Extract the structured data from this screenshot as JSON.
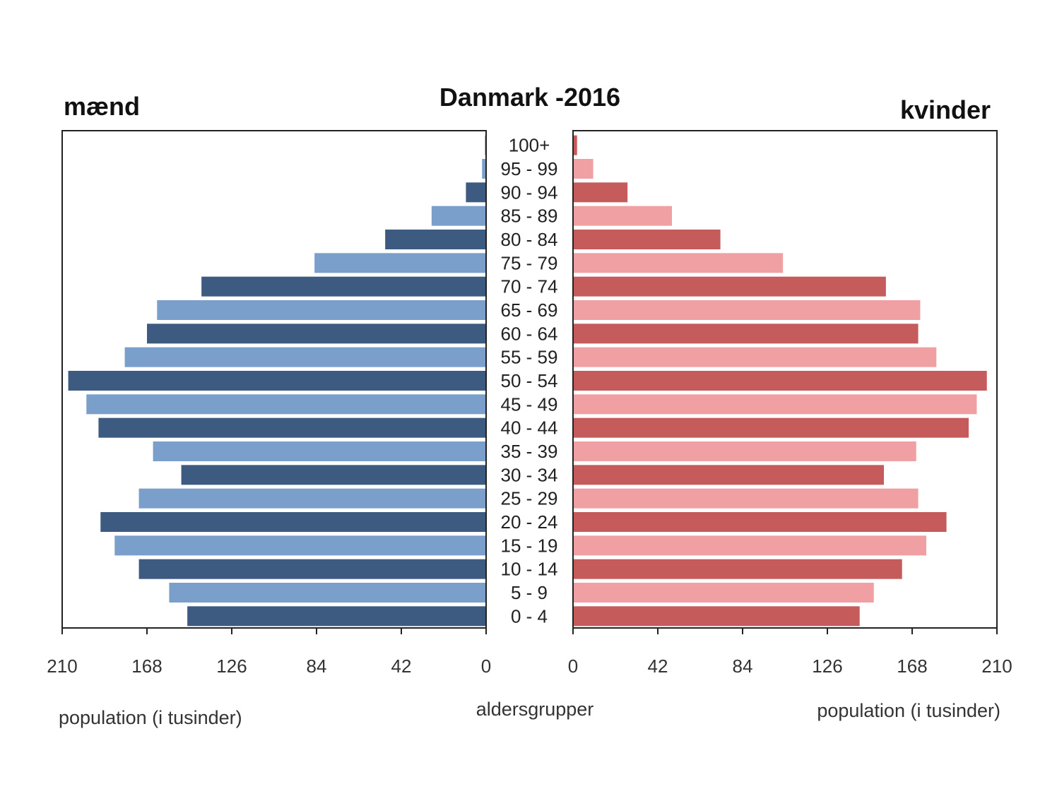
{
  "chart_data": {
    "type": "bar",
    "orientation": "horizontal",
    "layout": "population-pyramid",
    "title": "Danmark -2016",
    "left_panel_label": "mænd",
    "right_panel_label": "kvinder",
    "xlabel_left": "population (i tusinder)",
    "xlabel_right": "population (i tusinder)",
    "center_label": "aldersgrupper",
    "xlim": [
      0,
      210
    ],
    "xticks": [
      0,
      42,
      84,
      126,
      168,
      210
    ],
    "categories": [
      "0 - 4",
      "5 - 9",
      "10 - 14",
      "15 - 19",
      "20 - 24",
      "25 - 29",
      "30 - 34",
      "35 - 39",
      "40 - 44",
      "45 - 49",
      "50 - 54",
      "55 - 59",
      "60 - 64",
      "65 - 69",
      "70 - 74",
      "75 - 79",
      "80 - 84",
      "85 - 89",
      "90 - 94",
      "95 - 99",
      "100+"
    ],
    "series": [
      {
        "name": "mænd",
        "side": "left",
        "colors": [
          "#3d5a80",
          "#7a9fca"
        ],
        "values": [
          148,
          157,
          172,
          184,
          191,
          172,
          151,
          165,
          192,
          198,
          207,
          179,
          168,
          163,
          141,
          85,
          50,
          27,
          10,
          2,
          0.5
        ]
      },
      {
        "name": "kvinder",
        "side": "right",
        "colors": [
          "#c65b5b",
          "#f0a0a2"
        ],
        "values": [
          142,
          149,
          163,
          175,
          185,
          171,
          154,
          170,
          196,
          200,
          205,
          180,
          171,
          172,
          155,
          104,
          73,
          49,
          27,
          10,
          2
        ]
      }
    ],
    "legend": "none",
    "grid": false
  }
}
